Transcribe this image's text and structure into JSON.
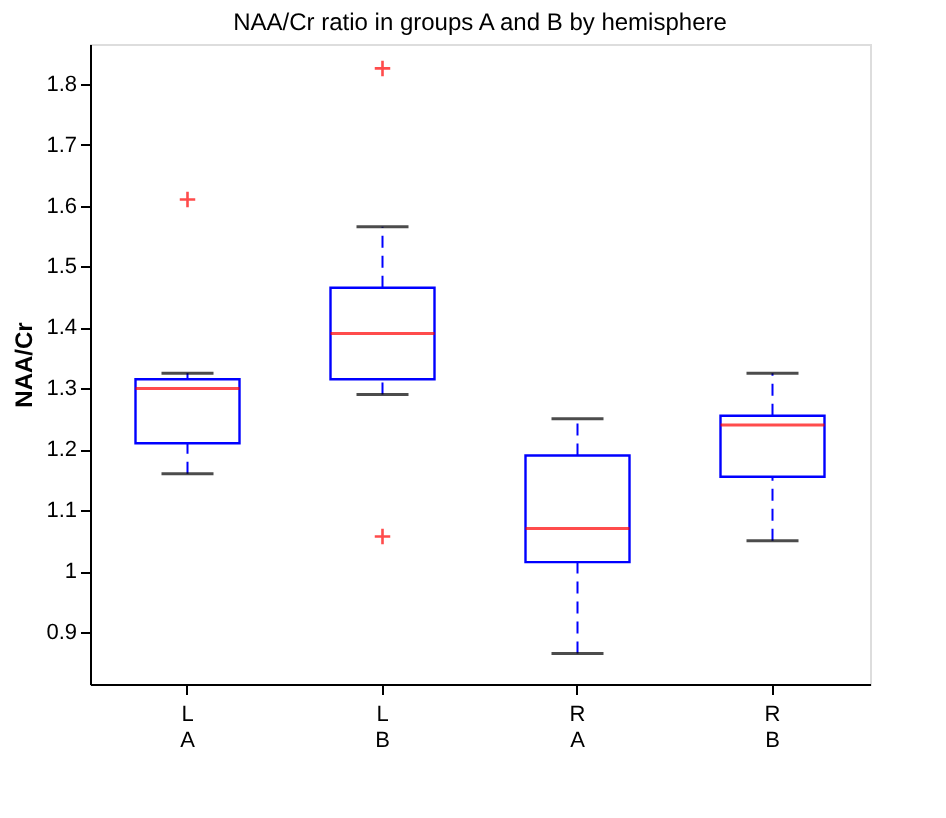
{
  "chart_data": {
    "type": "box",
    "title": "NAA/Cr ratio in groups A and B by hemisphere",
    "ylabel": "NAA/Cr",
    "categories": [
      "L\nA",
      "L\nB",
      "R\nA",
      "R\nB"
    ],
    "series": [
      {
        "color": "#0000ff",
        "boxes": [
          {
            "low": 1.16,
            "q1": 1.21,
            "median": 1.3,
            "q3": 1.315,
            "high": 1.325,
            "outliers": [
              1.61
            ]
          },
          {
            "low": 1.29,
            "q1": 1.315,
            "median": 1.39,
            "q3": 1.465,
            "high": 1.565,
            "outliers": [
              1.825,
              1.057
            ]
          },
          {
            "low": 0.865,
            "q1": 1.015,
            "median": 1.07,
            "q3": 1.19,
            "high": 1.25
          },
          {
            "low": 1.05,
            "q1": 1.155,
            "median": 1.24,
            "q3": 1.255,
            "high": 1.325
          }
        ]
      }
    ],
    "ylim": [
      0.815,
      1.865
    ],
    "yticks": [
      0.9,
      1.0,
      1.1,
      1.2,
      1.3,
      1.4,
      1.5,
      1.6,
      1.7,
      1.8
    ]
  }
}
